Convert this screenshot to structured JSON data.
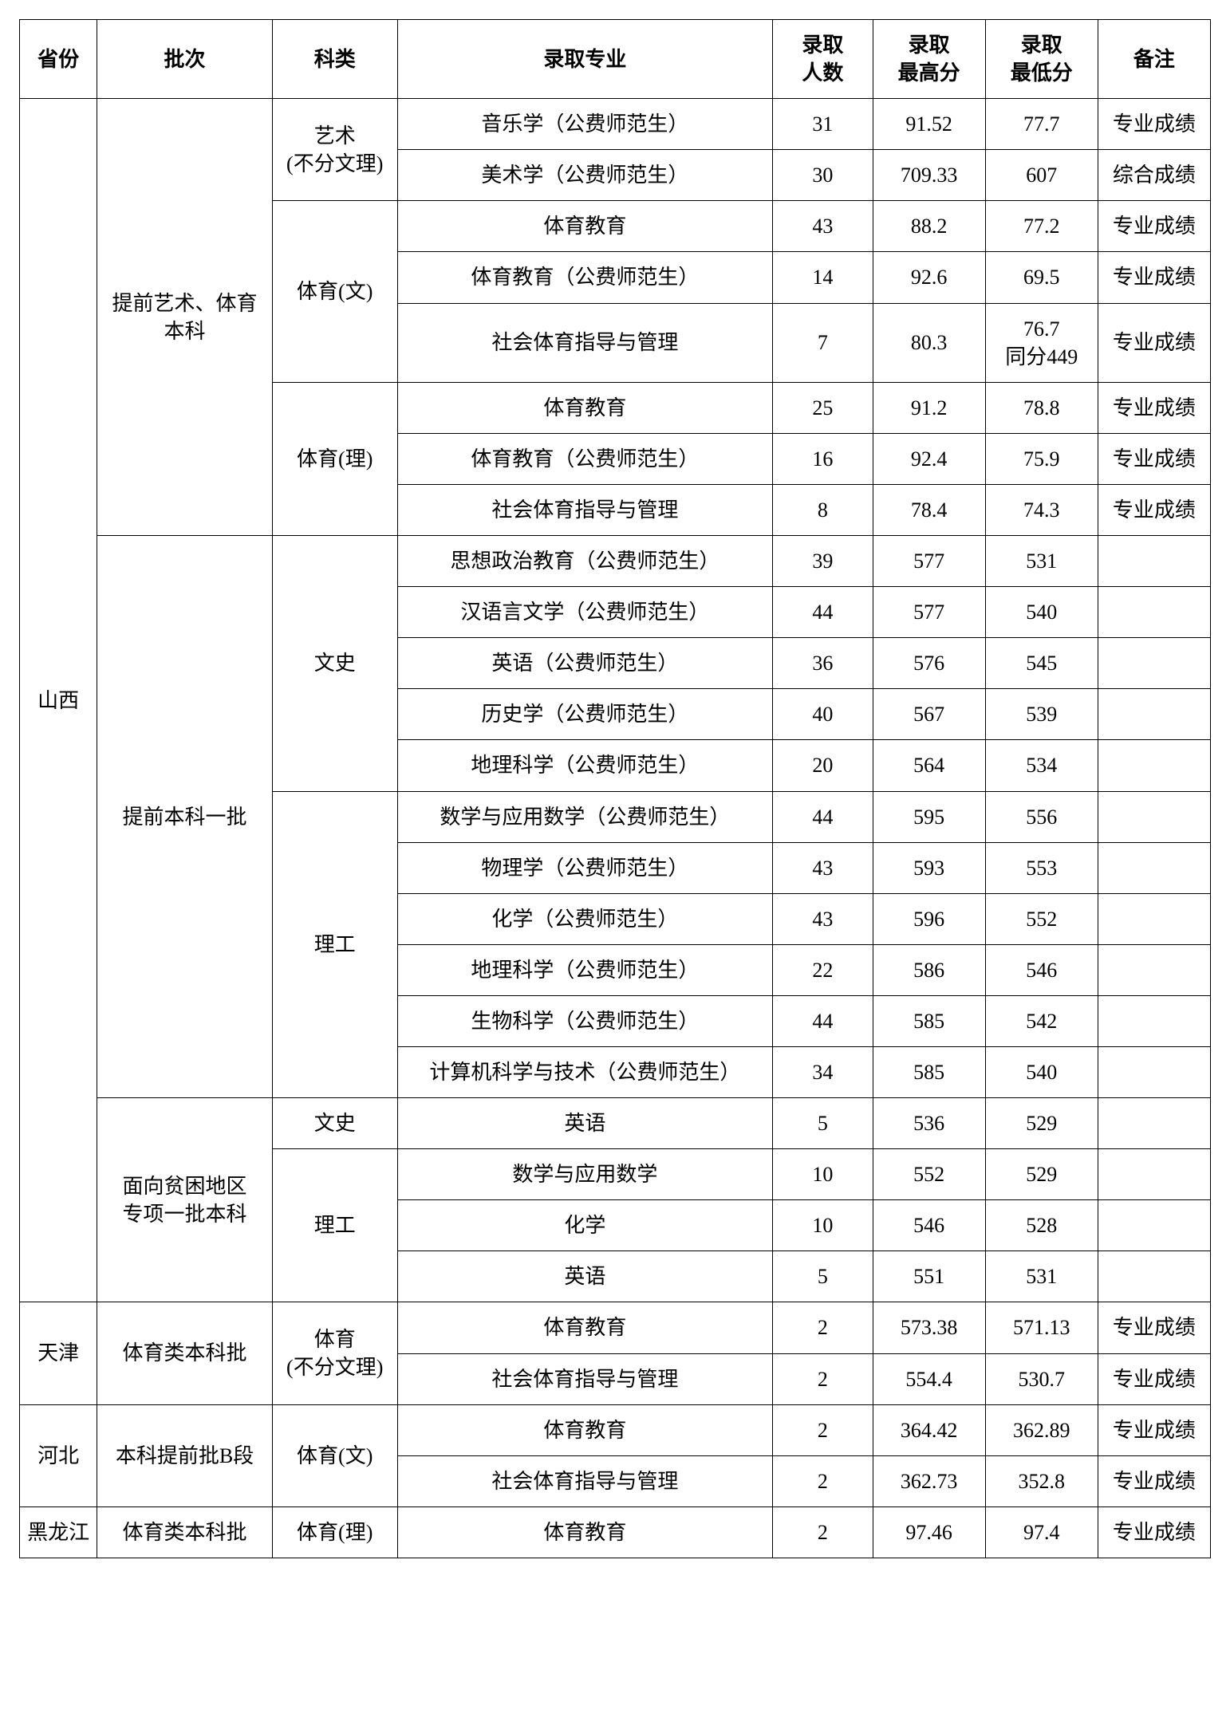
{
  "columns": {
    "province": "省份",
    "batch": "批次",
    "subject": "科类",
    "major": "录取专业",
    "count_l1": "录取",
    "count_l2": "人数",
    "high_l1": "录取",
    "high_l2": "最高分",
    "low_l1": "录取",
    "low_l2": "最低分",
    "remark": "备注"
  },
  "provinces": {
    "shanxi": "山西",
    "tianjin": "天津",
    "hebei": "河北",
    "heilongjiang": "黑龙江"
  },
  "batches": {
    "pre_art_sport_l1": "提前艺术、体育",
    "pre_art_sport_l2": "本科",
    "pre_batch1": "提前本科一批",
    "poverty_l1": "面向贫困地区",
    "poverty_l2": "专项一批本科",
    "tj_sport": "体育类本科批",
    "hb_preB": "本科提前批B段",
    "hlj_sport": "体育类本科批"
  },
  "subjects": {
    "art_l1": "艺术",
    "art_l2": "(不分文理)",
    "sport_wen": "体育(文)",
    "sport_li": "体育(理)",
    "wenshi": "文史",
    "ligong": "理工",
    "sport_nf_l1": "体育",
    "sport_nf_l2": "(不分文理)"
  },
  "rows": [
    {
      "major": "音乐学（公费师范生）",
      "count": "31",
      "high": "91.52",
      "low": "77.7",
      "remark": "专业成绩"
    },
    {
      "major": "美术学（公费师范生）",
      "count": "30",
      "high": "709.33",
      "low": "607",
      "remark": "综合成绩"
    },
    {
      "major": "体育教育",
      "count": "43",
      "high": "88.2",
      "low": "77.2",
      "remark": "专业成绩"
    },
    {
      "major": "体育教育（公费师范生）",
      "count": "14",
      "high": "92.6",
      "low": "69.5",
      "remark": "专业成绩"
    },
    {
      "major": "社会体育指导与管理",
      "count": "7",
      "high": "80.3",
      "low_l1": "76.7",
      "low_l2": "同分449",
      "remark": "专业成绩"
    },
    {
      "major": "体育教育",
      "count": "25",
      "high": "91.2",
      "low": "78.8",
      "remark": "专业成绩"
    },
    {
      "major": "体育教育（公费师范生）",
      "count": "16",
      "high": "92.4",
      "low": "75.9",
      "remark": "专业成绩"
    },
    {
      "major": "社会体育指导与管理",
      "count": "8",
      "high": "78.4",
      "low": "74.3",
      "remark": "专业成绩"
    },
    {
      "major": "思想政治教育（公费师范生）",
      "count": "39",
      "high": "577",
      "low": "531",
      "remark": ""
    },
    {
      "major": "汉语言文学（公费师范生）",
      "count": "44",
      "high": "577",
      "low": "540",
      "remark": ""
    },
    {
      "major": "英语（公费师范生）",
      "count": "36",
      "high": "576",
      "low": "545",
      "remark": ""
    },
    {
      "major": "历史学（公费师范生）",
      "count": "40",
      "high": "567",
      "low": "539",
      "remark": ""
    },
    {
      "major": "地理科学（公费师范生）",
      "count": "20",
      "high": "564",
      "low": "534",
      "remark": ""
    },
    {
      "major": "数学与应用数学（公费师范生）",
      "count": "44",
      "high": "595",
      "low": "556",
      "remark": ""
    },
    {
      "major": "物理学（公费师范生）",
      "count": "43",
      "high": "593",
      "low": "553",
      "remark": ""
    },
    {
      "major": "化学（公费师范生）",
      "count": "43",
      "high": "596",
      "low": "552",
      "remark": ""
    },
    {
      "major": "地理科学（公费师范生）",
      "count": "22",
      "high": "586",
      "low": "546",
      "remark": ""
    },
    {
      "major": "生物科学（公费师范生）",
      "count": "44",
      "high": "585",
      "low": "542",
      "remark": ""
    },
    {
      "major": "计算机科学与技术（公费师范生）",
      "count": "34",
      "high": "585",
      "low": "540",
      "remark": ""
    },
    {
      "major": "英语",
      "count": "5",
      "high": "536",
      "low": "529",
      "remark": ""
    },
    {
      "major": "数学与应用数学",
      "count": "10",
      "high": "552",
      "low": "529",
      "remark": ""
    },
    {
      "major": "化学",
      "count": "10",
      "high": "546",
      "low": "528",
      "remark": ""
    },
    {
      "major": "英语",
      "count": "5",
      "high": "551",
      "low": "531",
      "remark": ""
    },
    {
      "major": "体育教育",
      "count": "2",
      "high": "573.38",
      "low": "571.13",
      "remark": "专业成绩"
    },
    {
      "major": "社会体育指导与管理",
      "count": "2",
      "high": "554.4",
      "low": "530.7",
      "remark": "专业成绩"
    },
    {
      "major": "体育教育",
      "count": "2",
      "high": "364.42",
      "low": "362.89",
      "remark": "专业成绩"
    },
    {
      "major": "社会体育指导与管理",
      "count": "2",
      "high": "362.73",
      "low": "352.8",
      "remark": "专业成绩"
    },
    {
      "major": "体育教育",
      "count": "2",
      "high": "97.46",
      "low": "97.4",
      "remark": "专业成绩"
    }
  ]
}
